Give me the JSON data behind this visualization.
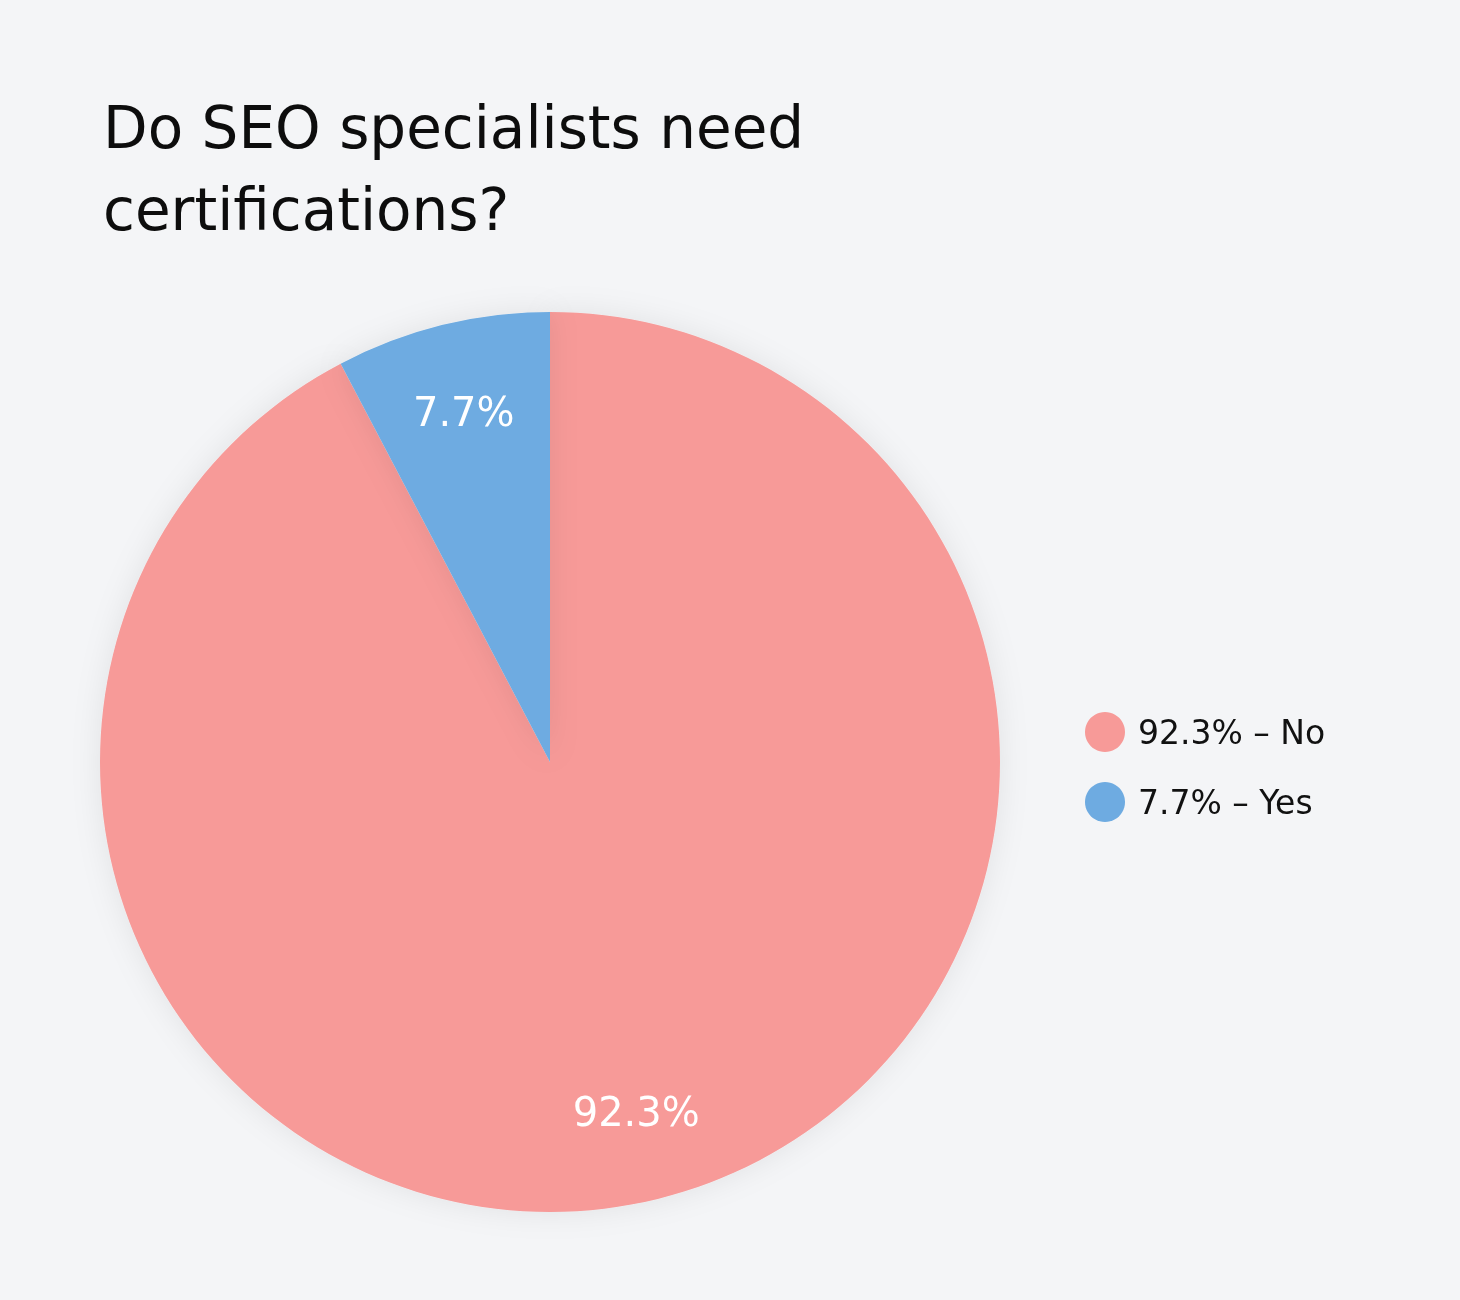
{
  "chart_data": {
    "type": "pie",
    "title": "Do SEO specialists need certifications?",
    "categories": [
      "92.3% – No",
      "7.7% – Yes"
    ],
    "values": [
      92.3,
      7.7
    ],
    "colors": [
      "#f79a98",
      "#6eabe1"
    ],
    "value_labels": [
      "92.3%",
      "7.7%"
    ],
    "legend": "right"
  }
}
